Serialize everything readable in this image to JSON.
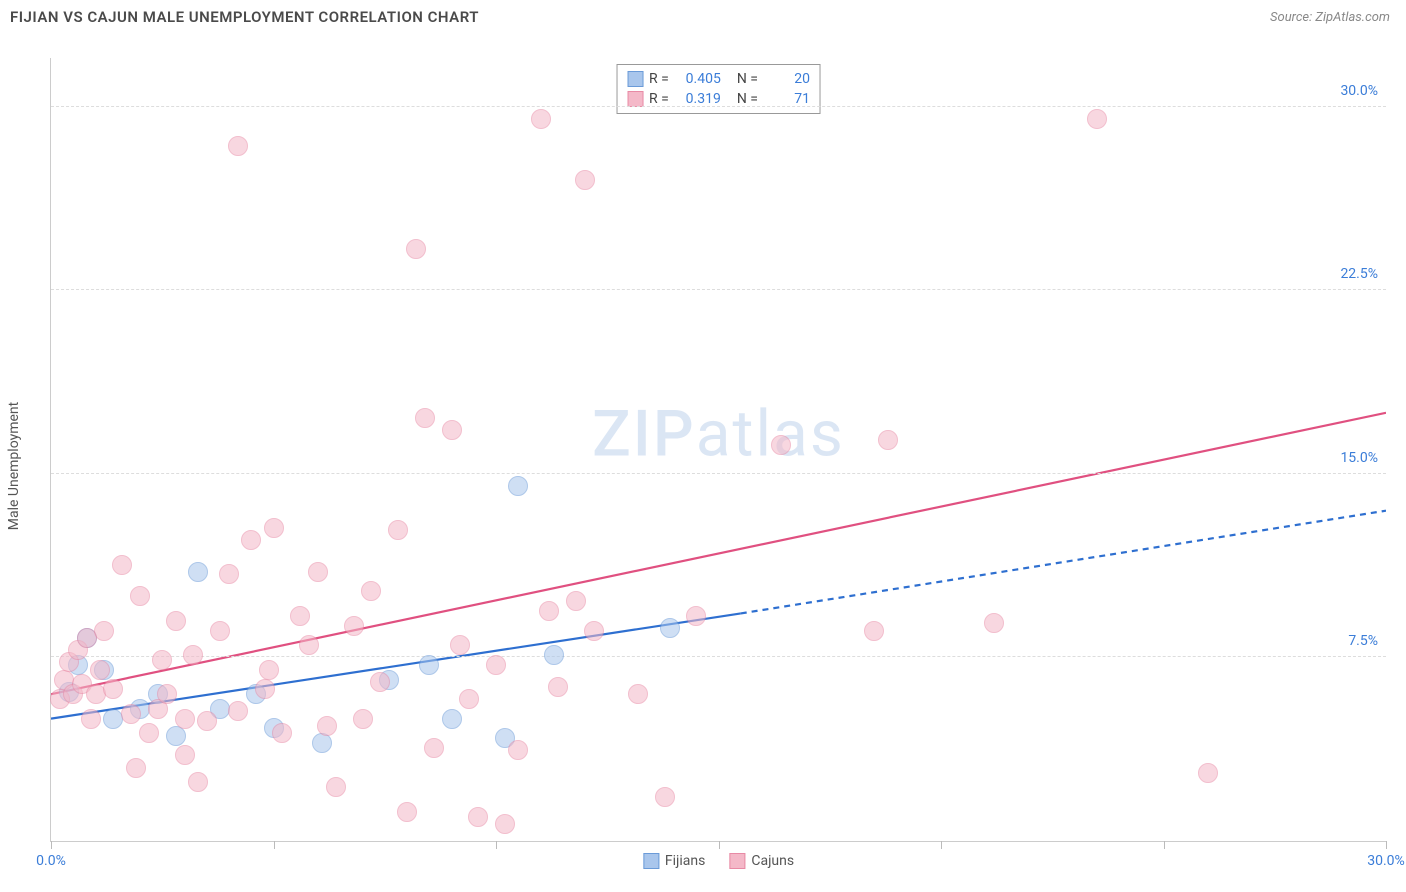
{
  "title": "FIJIAN VS CAJUN MALE UNEMPLOYMENT CORRELATION CHART",
  "source": "Source: ZipAtlas.com",
  "chart": {
    "type": "scatter",
    "ylabel": "Male Unemployment",
    "xlim": [
      0,
      30
    ],
    "ylim": [
      0,
      32
    ],
    "ytick_values": [
      7.5,
      15.0,
      22.5,
      30.0
    ],
    "ytick_labels": [
      "7.5%",
      "15.0%",
      "22.5%",
      "30.0%"
    ],
    "xtick_values": [
      0,
      5,
      10,
      15,
      20,
      25,
      30
    ],
    "xtick_labels_shown": {
      "0": "0.0%",
      "30": "30.0%"
    },
    "background_color": "#ffffff",
    "grid_color": "#dddddd",
    "axis_color": "#cccccc",
    "tick_label_color": "#3b7dd8",
    "marker_radius": 10,
    "marker_opacity": 0.55,
    "series": [
      {
        "name": "Fijians",
        "color_fill": "#a9c6ec",
        "color_stroke": "#6b9bd8",
        "R": "0.405",
        "N": "20",
        "trend": {
          "x1": 0,
          "y1": 5.0,
          "x2_solid": 15.5,
          "y2_solid": 9.3,
          "x2": 30,
          "y2": 13.5,
          "color": "#2e6fd0",
          "width": 2.2
        },
        "points": [
          [
            0.4,
            6.1
          ],
          [
            0.6,
            7.2
          ],
          [
            0.8,
            8.3
          ],
          [
            1.2,
            7.0
          ],
          [
            1.4,
            5.0
          ],
          [
            2.0,
            5.4
          ],
          [
            2.4,
            6.0
          ],
          [
            2.8,
            4.3
          ],
          [
            3.3,
            11.0
          ],
          [
            3.8,
            5.4
          ],
          [
            4.6,
            6.0
          ],
          [
            5.0,
            4.6
          ],
          [
            6.1,
            4.0
          ],
          [
            7.6,
            6.6
          ],
          [
            8.5,
            7.2
          ],
          [
            9.0,
            5.0
          ],
          [
            10.2,
            4.2
          ],
          [
            10.5,
            14.5
          ],
          [
            11.3,
            7.6
          ],
          [
            13.9,
            8.7
          ]
        ]
      },
      {
        "name": "Cajuns",
        "color_fill": "#f4b8c8",
        "color_stroke": "#e88aa5",
        "R": "0.319",
        "N": "71",
        "trend": {
          "x1": 0,
          "y1": 6.0,
          "x2_solid": 30,
          "y2_solid": 17.5,
          "x2": 30,
          "y2": 17.5,
          "color": "#e05080",
          "width": 2.2
        },
        "points": [
          [
            0.2,
            5.8
          ],
          [
            0.3,
            6.6
          ],
          [
            0.4,
            7.3
          ],
          [
            0.5,
            6.0
          ],
          [
            0.6,
            7.8
          ],
          [
            0.7,
            6.4
          ],
          [
            0.8,
            8.3
          ],
          [
            0.9,
            5.0
          ],
          [
            1.0,
            6.0
          ],
          [
            1.1,
            7.0
          ],
          [
            1.2,
            8.6
          ],
          [
            1.4,
            6.2
          ],
          [
            1.6,
            11.3
          ],
          [
            1.8,
            5.2
          ],
          [
            1.9,
            3.0
          ],
          [
            2.0,
            10.0
          ],
          [
            2.2,
            4.4
          ],
          [
            2.4,
            5.4
          ],
          [
            2.5,
            7.4
          ],
          [
            2.6,
            6.0
          ],
          [
            2.8,
            9.0
          ],
          [
            3.0,
            3.5
          ],
          [
            3.0,
            5.0
          ],
          [
            3.2,
            7.6
          ],
          [
            3.3,
            2.4
          ],
          [
            3.5,
            4.9
          ],
          [
            3.8,
            8.6
          ],
          [
            4.0,
            10.9
          ],
          [
            4.2,
            5.3
          ],
          [
            4.2,
            28.4
          ],
          [
            4.5,
            12.3
          ],
          [
            4.8,
            6.2
          ],
          [
            5.0,
            12.8
          ],
          [
            5.2,
            4.4
          ],
          [
            5.6,
            9.2
          ],
          [
            5.8,
            8.0
          ],
          [
            6.0,
            11.0
          ],
          [
            6.2,
            4.7
          ],
          [
            6.4,
            2.2
          ],
          [
            6.8,
            8.8
          ],
          [
            7.0,
            5.0
          ],
          [
            7.2,
            10.2
          ],
          [
            7.4,
            6.5
          ],
          [
            7.8,
            12.7
          ],
          [
            8.0,
            1.2
          ],
          [
            8.2,
            24.2
          ],
          [
            8.4,
            17.3
          ],
          [
            8.6,
            3.8
          ],
          [
            9.0,
            16.8
          ],
          [
            9.2,
            8.0
          ],
          [
            9.4,
            5.8
          ],
          [
            9.6,
            1.0
          ],
          [
            10.0,
            7.2
          ],
          [
            10.2,
            0.7
          ],
          [
            10.5,
            3.7
          ],
          [
            11.0,
            29.5
          ],
          [
            11.2,
            9.4
          ],
          [
            11.4,
            6.3
          ],
          [
            11.8,
            9.8
          ],
          [
            12.0,
            27.0
          ],
          [
            12.2,
            8.6
          ],
          [
            13.2,
            6.0
          ],
          [
            13.8,
            1.8
          ],
          [
            16.4,
            16.2
          ],
          [
            18.5,
            8.6
          ],
          [
            18.8,
            16.4
          ],
          [
            21.2,
            8.9
          ],
          [
            23.5,
            29.5
          ],
          [
            26.0,
            2.8
          ],
          [
            14.5,
            9.2
          ],
          [
            4.9,
            7.0
          ]
        ]
      }
    ]
  }
}
